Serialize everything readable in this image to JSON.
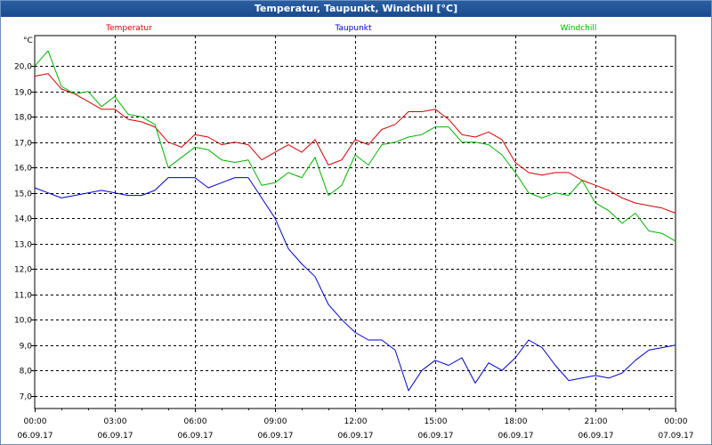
{
  "window": {
    "title": "Temperatur, Taupunkt, Windchill [°C]"
  },
  "colors": {
    "temperature": "#d40000",
    "dewpoint": "#0000c8",
    "windchill": "#00b400",
    "grid": "#000000",
    "title_bg": "#1f4f91"
  },
  "chart_data": {
    "type": "line",
    "title": "Temperatur, Taupunkt, Windchill [°C]",
    "ylabel": "°C",
    "ylim": [
      6.5,
      21.2
    ],
    "yticks": [
      7.0,
      8.0,
      9.0,
      10.0,
      11.0,
      12.0,
      13.0,
      14.0,
      15.0,
      16.0,
      17.0,
      18.0,
      19.0,
      20.0
    ],
    "ytick_labels": [
      "7,0",
      "8,0",
      "9,0",
      "10,0",
      "11,0",
      "12,0",
      "13,0",
      "14,0",
      "15,0",
      "16,0",
      "17,0",
      "18,0",
      "19,0",
      "20,0"
    ],
    "xlim": [
      0,
      24
    ],
    "xticks": [
      0,
      3,
      6,
      9,
      12,
      15,
      18,
      21,
      24
    ],
    "xtick_time_labels": [
      "00:00",
      "03:00",
      "06:00",
      "09:00",
      "12:00",
      "15:00",
      "18:00",
      "21:00",
      "00:00"
    ],
    "xtick_date_labels": [
      "06.09.17",
      "06.09.17",
      "06.09.17",
      "06.09.17",
      "06.09.17",
      "06.09.17",
      "06.09.17",
      "06.09.17",
      "07.09.17"
    ],
    "grid": true,
    "legend": [
      "Temperatur",
      "Taupunkt",
      "Windchill"
    ],
    "series": [
      {
        "name": "Temperatur",
        "x": [
          0,
          0.5,
          1,
          1.5,
          2,
          2.5,
          3,
          3.5,
          4,
          4.5,
          5,
          5.5,
          6,
          6.5,
          7,
          7.5,
          8,
          8.5,
          9,
          9.5,
          10,
          10.5,
          11,
          11.5,
          12,
          12.5,
          13,
          13.5,
          14,
          14.5,
          15,
          15.5,
          16,
          16.5,
          17,
          17.5,
          18,
          18.5,
          19,
          19.5,
          20,
          20.5,
          21,
          21.5,
          22,
          22.5,
          23,
          23.5,
          24
        ],
        "values": [
          19.6,
          19.7,
          19.1,
          18.9,
          18.6,
          18.3,
          18.3,
          17.9,
          17.8,
          17.6,
          17.0,
          16.8,
          17.3,
          17.2,
          16.9,
          17.0,
          16.9,
          16.3,
          16.6,
          16.9,
          16.6,
          17.1,
          16.1,
          16.3,
          17.1,
          16.9,
          17.5,
          17.7,
          18.2,
          18.2,
          18.3,
          17.9,
          17.3,
          17.2,
          17.4,
          17.1,
          16.2,
          15.8,
          15.7,
          15.8,
          15.8,
          15.5,
          15.3,
          15.1,
          14.8,
          14.6,
          14.5,
          14.4,
          14.2
        ]
      },
      {
        "name": "Taupunkt",
        "x": [
          0,
          0.5,
          1,
          1.5,
          2,
          2.5,
          3,
          3.5,
          4,
          4.5,
          5,
          5.5,
          6,
          6.5,
          7,
          7.5,
          8,
          8.5,
          9,
          9.5,
          10,
          10.5,
          11,
          11.5,
          12,
          12.5,
          13,
          13.5,
          14,
          14.5,
          15,
          15.5,
          16,
          16.5,
          17,
          17.5,
          18,
          18.5,
          19,
          19.5,
          20,
          20.5,
          21,
          21.5,
          22,
          22.5,
          23,
          23.5,
          24
        ],
        "values": [
          15.2,
          15.0,
          14.8,
          14.9,
          15.0,
          15.1,
          15.0,
          14.9,
          14.9,
          15.1,
          15.6,
          15.6,
          15.6,
          15.2,
          15.4,
          15.6,
          15.6,
          14.8,
          14.0,
          12.8,
          12.2,
          11.7,
          10.6,
          10.0,
          9.5,
          9.2,
          9.2,
          8.8,
          7.2,
          8.0,
          8.4,
          8.2,
          8.5,
          7.5,
          8.3,
          8.0,
          8.5,
          9.2,
          8.9,
          8.2,
          7.6,
          7.7,
          7.8,
          7.7,
          7.9,
          8.4,
          8.8,
          8.9,
          9.0
        ]
      },
      {
        "name": "Windchill",
        "x": [
          0,
          0.5,
          1,
          1.5,
          2,
          2.5,
          3,
          3.5,
          4,
          4.5,
          5,
          5.5,
          6,
          6.5,
          7,
          7.5,
          8,
          8.5,
          9,
          9.5,
          10,
          10.5,
          11,
          11.5,
          12,
          12.5,
          13,
          13.5,
          14,
          14.5,
          15,
          15.5,
          16,
          16.5,
          17,
          17.5,
          18,
          18.5,
          19,
          19.5,
          20,
          20.5,
          21,
          21.5,
          22,
          22.5,
          23,
          23.5,
          24
        ],
        "values": [
          20.0,
          20.6,
          19.2,
          18.9,
          19.0,
          18.4,
          18.8,
          18.1,
          18.0,
          17.7,
          16.0,
          16.4,
          16.8,
          16.7,
          16.3,
          16.2,
          16.3,
          15.3,
          15.4,
          15.8,
          15.6,
          16.4,
          14.9,
          15.3,
          16.5,
          16.1,
          16.9,
          17.0,
          17.2,
          17.3,
          17.6,
          17.6,
          17.0,
          17.0,
          16.9,
          16.5,
          15.8,
          15.0,
          14.8,
          15.0,
          14.9,
          15.5,
          14.6,
          14.3,
          13.8,
          14.2,
          13.5,
          13.4,
          13.1
        ]
      }
    ]
  }
}
